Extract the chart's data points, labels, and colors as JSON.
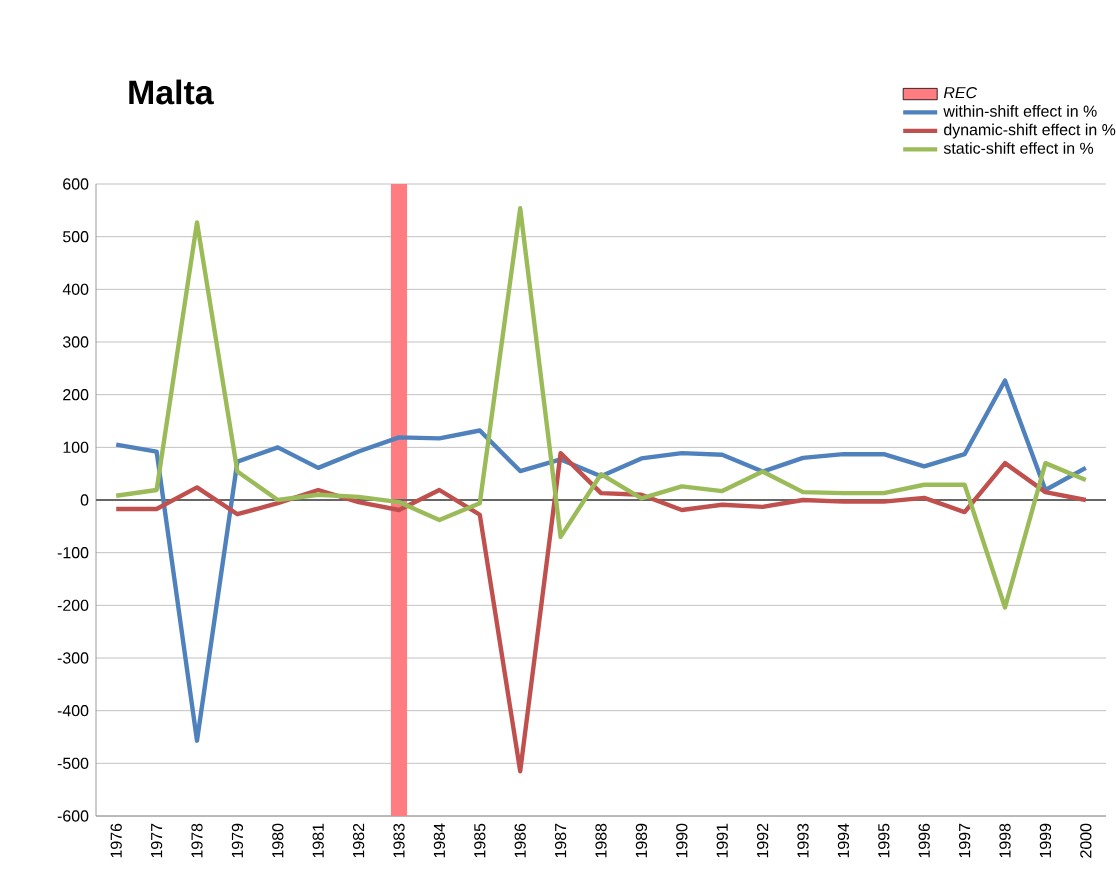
{
  "chart_data": {
    "type": "line",
    "title": "Malta",
    "categories": [
      "1976",
      "1977",
      "1978",
      "1979",
      "1980",
      "1981",
      "1982",
      "1983",
      "1984",
      "1985",
      "1986",
      "1987",
      "1988",
      "1989",
      "1990",
      "1991",
      "1992",
      "1993",
      "1994",
      "1995",
      "1996",
      "1997",
      "1998",
      "1999",
      "2000"
    ],
    "series": [
      {
        "name": "within-shift effect in %",
        "color": "#4f81bd",
        "values": [
          105,
          92,
          -457,
          73,
          100,
          61,
          92,
          119,
          117,
          132,
          55,
          77,
          45,
          79,
          89,
          86,
          54,
          80,
          87,
          87,
          64,
          87,
          227,
          19,
          61
        ]
      },
      {
        "name": "dynamic-shift effect in %",
        "color": "#c0504d",
        "values": [
          -17,
          -17,
          24,
          -27,
          -6,
          19,
          -4,
          -19,
          19,
          -28,
          -515,
          89,
          13,
          10,
          -19,
          -9,
          -13,
          0,
          -3,
          -3,
          4,
          -23,
          70,
          15,
          0
        ]
      },
      {
        "name": "static-shift effect in %",
        "color": "#9bbb59",
        "values": [
          8,
          19,
          527,
          54,
          0,
          10,
          6,
          -4,
          -38,
          -6,
          554,
          -70,
          49,
          3,
          26,
          17,
          54,
          15,
          13,
          13,
          29,
          29,
          -204,
          70,
          38
        ]
      }
    ],
    "bands": [
      {
        "axis": "x",
        "from": "1983",
        "to": "1983",
        "label": "REC",
        "color": "#ff7c80"
      }
    ],
    "ylim": [
      -600,
      600
    ],
    "yticks": [
      -600,
      -500,
      -400,
      -300,
      -200,
      -100,
      0,
      100,
      200,
      300,
      400,
      500,
      600
    ],
    "grid": "y",
    "legend": "top right",
    "marker": "none",
    "line_style": "solid"
  }
}
